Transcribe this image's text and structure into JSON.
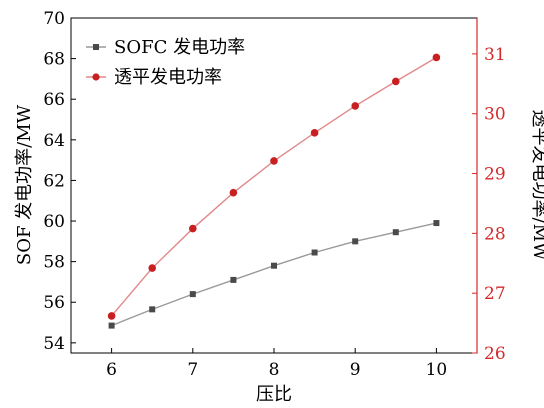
{
  "chart_data": {
    "type": "line",
    "x": [
      6,
      6.5,
      7,
      7.5,
      8,
      8.5,
      9,
      9.5,
      10
    ],
    "series": [
      {
        "name": "SOFC 发电功率",
        "axis": "left",
        "color": "#555555",
        "marker": "square",
        "values": [
          54.85,
          55.65,
          56.4,
          57.1,
          57.8,
          58.45,
          59.0,
          59.45,
          59.9
        ]
      },
      {
        "name": "透平发电功率",
        "axis": "right",
        "color": "#d42a2a",
        "marker": "circle",
        "values": [
          26.62,
          27.42,
          28.08,
          28.68,
          29.21,
          29.68,
          30.13,
          30.54,
          30.94
        ]
      }
    ],
    "xlabel": "压比",
    "ylabel": "SOF 发电功率/MW",
    "y2label": "透平发电功率/MW",
    "xlim": [
      5.5,
      10.5
    ],
    "ylim": [
      53.5,
      70
    ],
    "y2lim": [
      26,
      31.6
    ],
    "xticks": [
      "6",
      "7",
      "8",
      "9",
      "10"
    ],
    "yticks": [
      "54",
      "56",
      "58",
      "60",
      "62",
      "64",
      "66",
      "68",
      "70"
    ],
    "y2ticks": [
      "26",
      "27",
      "28",
      "29",
      "30",
      "31"
    ],
    "legend_position": "top-left",
    "grid": false
  }
}
